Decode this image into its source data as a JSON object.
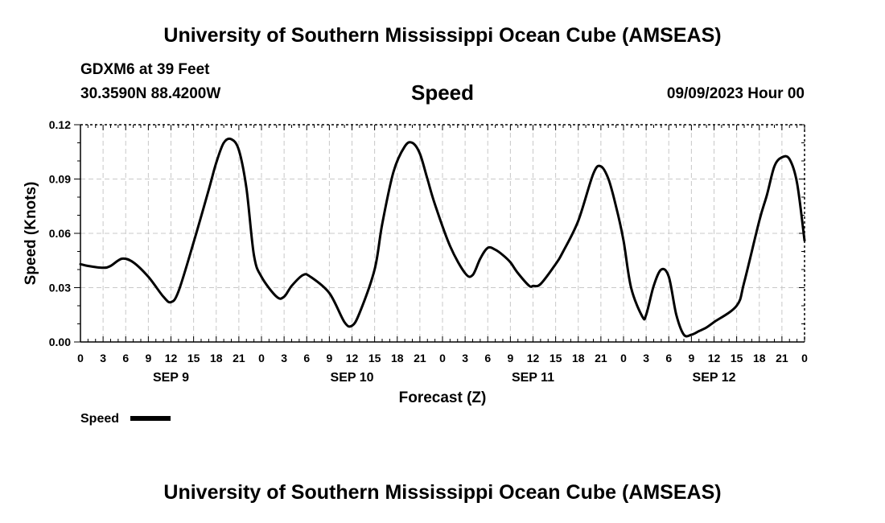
{
  "header": {
    "title": "University of Southern Mississippi Ocean Cube (AMSEAS)",
    "station": "GDXM6 at 39 Feet",
    "coords": "30.3590N  88.4200W",
    "datetime": "09/09/2023 Hour 00"
  },
  "footer": {
    "title": "University of Southern Mississippi Ocean Cube (AMSEAS)"
  },
  "colors": {
    "line": "#000000",
    "grid": "#c8c8c8",
    "background": "#ffffff"
  },
  "chart_data": {
    "type": "line",
    "title": "Speed",
    "xlabel": "Forecast (Z)",
    "ylabel": "Speed (Knots)",
    "xlim": [
      0,
      96
    ],
    "ylim": [
      0,
      0.12
    ],
    "yticks": [
      0.0,
      0.03,
      0.06,
      0.09,
      0.12
    ],
    "ytick_labels": [
      "0.00",
      "0.03",
      "0.06",
      "0.09",
      "0.12"
    ],
    "xticks": [
      0,
      3,
      6,
      9,
      12,
      15,
      18,
      21,
      24,
      27,
      30,
      33,
      36,
      39,
      42,
      45,
      48,
      51,
      54,
      57,
      60,
      63,
      66,
      69,
      72,
      75,
      78,
      81,
      84,
      87,
      90,
      93,
      96
    ],
    "xtick_labels": [
      "0",
      "3",
      "6",
      "9",
      "12",
      "15",
      "18",
      "21",
      "0",
      "3",
      "6",
      "9",
      "12",
      "15",
      "18",
      "21",
      "0",
      "3",
      "6",
      "9",
      "12",
      "15",
      "18",
      "21",
      "0",
      "3",
      "6",
      "9",
      "12",
      "15",
      "18",
      "21",
      "0"
    ],
    "day_labels": [
      {
        "label": "SEP 9",
        "hour": 12
      },
      {
        "label": "SEP 10",
        "hour": 36
      },
      {
        "label": "SEP 11",
        "hour": 60
      },
      {
        "label": "SEP 12",
        "hour": 84
      }
    ],
    "grid": true,
    "legend": {
      "placement": "bottom-left",
      "entries": [
        "Speed"
      ]
    },
    "series": [
      {
        "name": "Speed",
        "x": [
          0,
          1,
          3,
          4,
          5.5,
          7,
          9,
          11,
          12,
          13,
          15,
          17,
          18,
          19,
          20,
          21,
          22,
          23,
          24,
          26,
          27,
          28,
          29.5,
          30.5,
          33,
          35,
          36,
          37,
          39,
          40,
          41.5,
          43,
          44,
          45,
          46,
          47,
          49,
          51,
          52,
          53,
          54,
          55,
          56,
          57,
          58,
          59.5,
          60,
          61,
          63,
          64,
          66,
          68,
          69,
          70,
          71,
          72,
          73,
          74.5,
          75,
          76,
          77,
          78,
          79,
          80,
          81,
          82,
          83,
          84,
          87,
          88,
          90,
          91,
          92,
          93,
          94,
          95,
          96
        ],
        "values": [
          0.043,
          0.042,
          0.041,
          0.042,
          0.046,
          0.044,
          0.036,
          0.025,
          0.022,
          0.028,
          0.055,
          0.084,
          0.099,
          0.11,
          0.112,
          0.106,
          0.085,
          0.048,
          0.036,
          0.025,
          0.025,
          0.031,
          0.037,
          0.036,
          0.027,
          0.011,
          0.009,
          0.016,
          0.04,
          0.065,
          0.094,
          0.108,
          0.11,
          0.104,
          0.09,
          0.076,
          0.053,
          0.038,
          0.037,
          0.046,
          0.052,
          0.051,
          0.048,
          0.044,
          0.038,
          0.031,
          0.031,
          0.032,
          0.043,
          0.05,
          0.067,
          0.093,
          0.097,
          0.09,
          0.075,
          0.056,
          0.03,
          0.014,
          0.015,
          0.031,
          0.04,
          0.036,
          0.015,
          0.004,
          0.004,
          0.006,
          0.008,
          0.011,
          0.02,
          0.033,
          0.067,
          0.081,
          0.097,
          0.102,
          0.101,
          0.088,
          0.056
        ]
      }
    ]
  }
}
